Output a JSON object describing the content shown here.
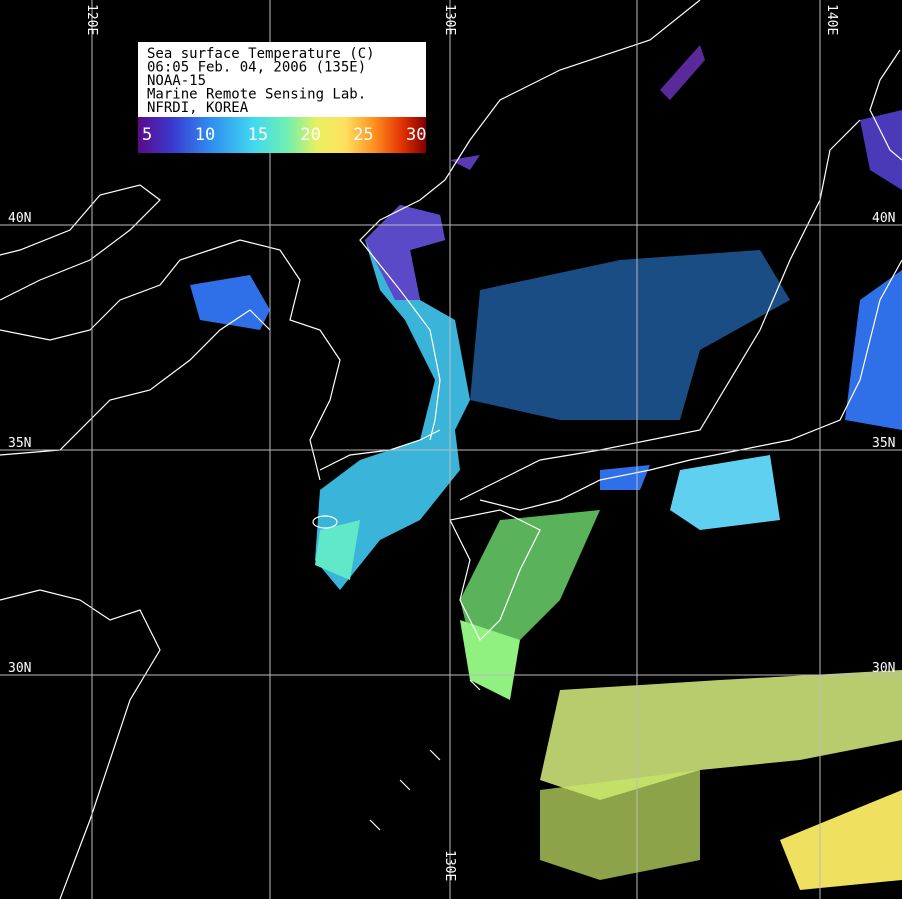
{
  "legend": {
    "lines": [
      "Sea surface Temperature (C)",
      "06:05 Feb. 04, 2006 (135E)",
      "NOAA-15",
      "Marine Remote Sensing Lab.",
      "NFRDI, KOREA"
    ],
    "colorbar_ticks": [
      5,
      10,
      15,
      20,
      25,
      30
    ]
  },
  "grid": {
    "lon_labels_top": [
      "120E",
      "130E",
      "140E"
    ],
    "lon_labels_bottom": [
      "130E"
    ],
    "lat_labels_left": [
      "40N",
      "35N",
      "30N"
    ],
    "lat_labels_right": [
      "40N",
      "35N",
      "30N"
    ]
  }
}
